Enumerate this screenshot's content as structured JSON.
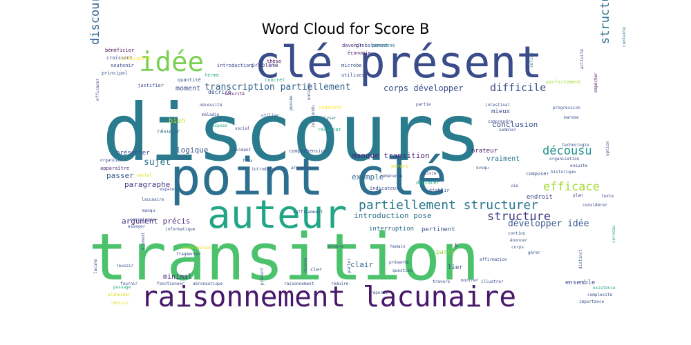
{
  "title": "Word Cloud for Score B",
  "words": [
    {
      "text": "discours",
      "color": "#2a7b8e"
    },
    {
      "text": "transition",
      "color": "#4cc26c"
    },
    {
      "text": "point clé",
      "color": "#2c6f8e"
    },
    {
      "text": "clé présent",
      "color": "#3b4c8a"
    },
    {
      "text": "raisonnement lacunaire",
      "color": "#48186a"
    },
    {
      "text": "auteur",
      "color": "#21a685"
    },
    {
      "text": "idée",
      "color": "#7ad151"
    },
    {
      "text": "partiellement structurer",
      "color": "#2a788e"
    },
    {
      "text": "structurer point",
      "color": "#2d708e"
    },
    {
      "text": "discours transcription",
      "color": "#33638d"
    },
    {
      "text": "transcription partiellement",
      "color": "#33638d"
    },
    {
      "text": "décousu",
      "color": "#20928c"
    },
    {
      "text": "efficace",
      "color": "#a5db36"
    },
    {
      "text": "structure",
      "color": "#443983"
    },
    {
      "text": "difficile",
      "color": "#3e4c8a"
    },
    {
      "text": "corps développer",
      "color": "#3b528b"
    },
    {
      "text": "manque transition",
      "color": "#482878"
    },
    {
      "text": "développer idée",
      "color": "#38598c"
    },
    {
      "text": "introduction pose",
      "color": "#2c728e"
    },
    {
      "text": "argument précis",
      "color": "#472d7b"
    },
    {
      "text": "sujet",
      "color": "#2c728e"
    },
    {
      "text": "logique",
      "color": "#3b528b"
    },
    {
      "text": "conclusion",
      "color": "#3b528b"
    },
    {
      "text": "moment",
      "color": "#3e4989"
    },
    {
      "text": "paragraphe",
      "color": "#46337e"
    },
    {
      "text": "exemple",
      "color": "#31688e"
    },
    {
      "text": "passer",
      "color": "#39568c"
    },
    {
      "text": "bien",
      "color": "#bddf26"
    },
    {
      "text": "minimal",
      "color": "#46327e"
    },
    {
      "text": "clair",
      "color": "#31688e"
    },
    {
      "text": "vraiment",
      "color": "#2a788e"
    },
    {
      "text": "orateur",
      "color": "#481769"
    },
    {
      "text": "endroit",
      "color": "#3e4a89"
    },
    {
      "text": "mieux",
      "color": "#404588"
    },
    {
      "text": "ensemble",
      "color": "#3e4a89"
    },
    {
      "text": "party",
      "color": "#95d840"
    },
    {
      "text": "b",
      "color": "#472d7b"
    },
    {
      "text": "lier",
      "color": "#3f4889"
    },
    {
      "text": "interruption",
      "color": "#2d708e"
    },
    {
      "text": "pertinent",
      "color": "#3b528b"
    },
    {
      "text": "présenter",
      "color": "#3b528b"
    },
    {
      "text": "résumer",
      "color": "#2f6c8e"
    },
    {
      "text": "décrire",
      "color": "#3b528b"
    },
    {
      "text": "problème",
      "color": "#46337e"
    },
    {
      "text": "introduction",
      "color": "#3e4a89"
    },
    {
      "text": "bénéficier",
      "color": "#440154"
    },
    {
      "text": "croissant",
      "color": "#3e4a89"
    },
    {
      "text": "soutenir",
      "color": "#3e4a89"
    },
    {
      "text": "efficacité",
      "color": "#fde725"
    },
    {
      "text": "concret",
      "color": "#21a685"
    },
    {
      "text": "globalement",
      "color": "#3b528b"
    },
    {
      "text": "devenir",
      "color": "#482878"
    },
    {
      "text": "personne",
      "color": "#2a788e"
    },
    {
      "text": "économie",
      "color": "#481a6c"
    },
    {
      "text": "contexte",
      "color": "#2c728e"
    },
    {
      "text": "principal",
      "color": "#3b528b"
    },
    {
      "text": "thèse",
      "color": "#440154"
    },
    {
      "text": "microbe",
      "color": "#3b528b"
    },
    {
      "text": "utiliser",
      "color": "#3b528b"
    },
    {
      "text": "solide",
      "color": "#2c728e"
    },
    {
      "text": "parfaitement",
      "color": "#a5db36"
    },
    {
      "text": "terme",
      "color": "#21a685"
    },
    {
      "text": "quantité",
      "color": "#3b528b"
    },
    {
      "text": "justifier",
      "color": "#3b528b"
    },
    {
      "text": "sécurité",
      "color": "#440154"
    },
    {
      "text": "activité",
      "color": "#3b528b"
    },
    {
      "text": "empêcher",
      "color": "#481467"
    },
    {
      "text": "nécessité",
      "color": "#3e4a89"
    },
    {
      "text": "maladie",
      "color": "#3e4a89"
    },
    {
      "text": "efficacer",
      "color": "#3e4a89"
    },
    {
      "text": "entendu",
      "color": "#3e4a89"
    },
    {
      "text": "cohérent",
      "color": "#fde725"
    },
    {
      "text": "partie",
      "color": "#3e4a89"
    },
    {
      "text": "intestinal",
      "color": "#3b528b"
    },
    {
      "text": "progression",
      "color": "#3b528b"
    },
    {
      "text": "utilise",
      "color": "#3b528b"
    },
    {
      "text": "analyser",
      "color": "#2a788e"
    },
    {
      "text": "comprendre",
      "color": "#3e4a89"
    },
    {
      "text": "marese",
      "color": "#3b528b"
    },
    {
      "text": "exposé",
      "color": "#21a685"
    },
    {
      "text": "social",
      "color": "#3e4a89"
    },
    {
      "text": "pensée",
      "color": "#3b528b"
    },
    {
      "text": "inattendu",
      "color": "#3e4a89"
    },
    {
      "text": "résultat",
      "color": "#21a685"
    },
    {
      "text": "sembler",
      "color": "#3e4a89"
    },
    {
      "text": "technologie",
      "color": "#3b528b"
    },
    {
      "text": "facile",
      "color": "#3b528b"
    },
    {
      "text": "évident",
      "color": "#3e4a89"
    },
    {
      "text": "compréhension",
      "color": "#3b528b"
    },
    {
      "text": "organisation",
      "color": "#3e4a89"
    },
    {
      "text": "ensuite",
      "color": "#3e4a89"
    },
    {
      "text": "option",
      "color": "#3b528b"
    },
    {
      "text": "organiser",
      "color": "#3b528b"
    },
    {
      "text": "apparaître",
      "color": "#482878"
    },
    {
      "text": "flux",
      "color": "#3e4a89"
    },
    {
      "text": "introduire",
      "color": "#3e4a89"
    },
    {
      "text": "argumenter",
      "color": "#3e4a89"
    },
    {
      "text": "évoqu",
      "color": "#3b528b"
    },
    {
      "text": "composer",
      "color": "#3e4a89"
    },
    {
      "text": "historique",
      "color": "#3b528b"
    },
    {
      "text": "mental",
      "color": "#d8e219"
    },
    {
      "text": "perdre",
      "color": "#d8e219"
    },
    {
      "text": "suivie",
      "color": "#3e4a89"
    },
    {
      "text": "espace",
      "color": "#3b528b"
    },
    {
      "text": "cohérence",
      "color": "#3e4a89"
    },
    {
      "text": "déplacer",
      "color": "#21a685"
    },
    {
      "text": "indicateur",
      "color": "#3b528b"
    },
    {
      "text": "établir",
      "color": "#3b528b"
    },
    {
      "text": "vie",
      "color": "#3e4a89"
    },
    {
      "text": "texte",
      "color": "#3b528b"
    },
    {
      "text": "lacunaire",
      "color": "#3b528b"
    },
    {
      "text": "manqu",
      "color": "#3e4a89"
    },
    {
      "text": "conscience",
      "color": "#3b528b"
    },
    {
      "text": "suffisamment",
      "color": "#3b528b"
    },
    {
      "text": "plan",
      "color": "#3e4a89"
    },
    {
      "text": "considérer",
      "color": "#3e4a89"
    },
    {
      "text": "essayer",
      "color": "#3b528b"
    },
    {
      "text": "informatique",
      "color": "#3b528b"
    },
    {
      "text": "énoncer",
      "color": "#3e4a89"
    },
    {
      "text": "continu",
      "color": "#3b528b"
    },
    {
      "text": "corps",
      "color": "#3b528b"
    },
    {
      "text": "cerveau",
      "color": "#21a685"
    },
    {
      "text": "contribution",
      "color": "#d8e219"
    },
    {
      "text": "élément",
      "color": "#3b528b"
    },
    {
      "text": "propre",
      "color": "#3e4a89"
    },
    {
      "text": "humain",
      "color": "#3e4a89"
    },
    {
      "text": "gérer",
      "color": "#3b528b"
    },
    {
      "text": "lacune",
      "color": "#3b528b"
    },
    {
      "text": "fragmenter",
      "color": "#3e4a89"
    },
    {
      "text": "donnée",
      "color": "#3b528b"
    },
    {
      "text": "parler",
      "color": "#3b528b"
    },
    {
      "text": "affirmation",
      "color": "#3e4a89"
    },
    {
      "text": "distinct",
      "color": "#3b528b"
    },
    {
      "text": "réussir",
      "color": "#3b528b"
    },
    {
      "text": "cler",
      "color": "#3b528b"
    },
    {
      "text": "présente",
      "color": "#3e4a89"
    },
    {
      "text": "question",
      "color": "#3b528b"
    },
    {
      "text": "montrer",
      "color": "#3e4a89"
    },
    {
      "text": "fournir",
      "color": "#3e4a89"
    },
    {
      "text": "fonctionner",
      "color": "#3e4a89"
    },
    {
      "text": "aéronautique",
      "color": "#3b528b"
    },
    {
      "text": "présent",
      "color": "#3b528b"
    },
    {
      "text": "raisonnement",
      "color": "#3e4a89"
    },
    {
      "text": "réduire",
      "color": "#3e4a89"
    },
    {
      "text": "travers",
      "color": "#3b528b"
    },
    {
      "text": "illustrer",
      "color": "#3e4a89"
    },
    {
      "text": "existence",
      "color": "#21a685"
    },
    {
      "text": "passage",
      "color": "#21a685"
    },
    {
      "text": "réponse",
      "color": "#3b528b"
    },
    {
      "text": "complexité",
      "color": "#3b528b"
    },
    {
      "text": "alzheimer",
      "color": "#d8e219"
    },
    {
      "text": "choisir",
      "color": "#d8e219"
    },
    {
      "text": "importance",
      "color": "#3b528b"
    }
  ]
}
